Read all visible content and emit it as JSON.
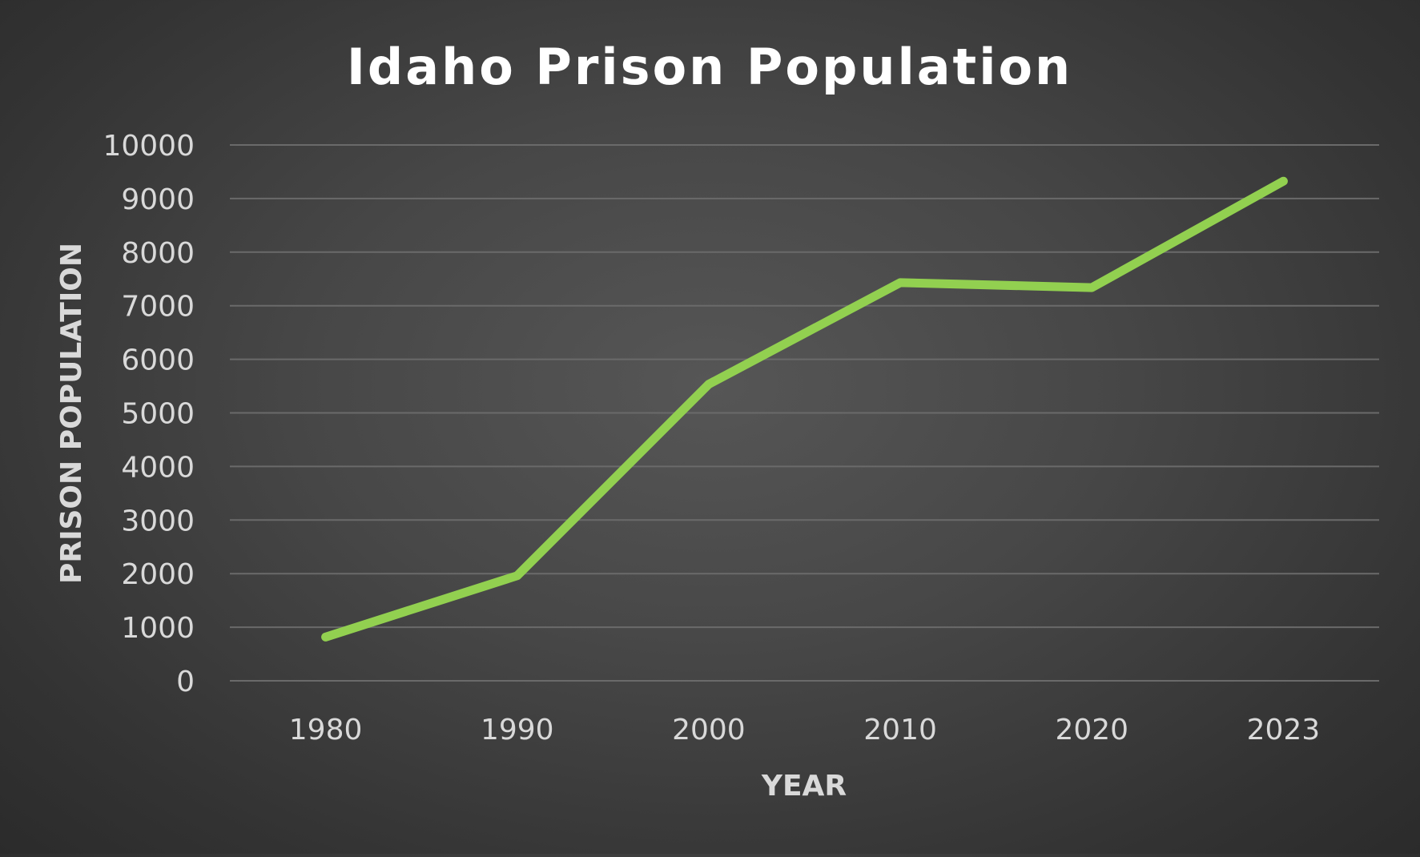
{
  "chart_data": {
    "type": "line",
    "title": "Idaho Prison Population",
    "xlabel": "YEAR",
    "ylabel": "PRISON POPULATION",
    "categories": [
      "1980",
      "1990",
      "2000",
      "2010",
      "2020",
      "2023"
    ],
    "series": [
      {
        "values": [
          817,
          1961,
          5535,
          7431,
          7338,
          9324
        ],
        "color": "#92d050"
      }
    ],
    "ylim": [
      0,
      10000
    ],
    "yticks": [
      "0",
      "1000",
      "2000",
      "3000",
      "4000",
      "5000",
      "6000",
      "7000",
      "8000",
      "9000",
      "10000"
    ],
    "grid": true,
    "legend": "none"
  }
}
